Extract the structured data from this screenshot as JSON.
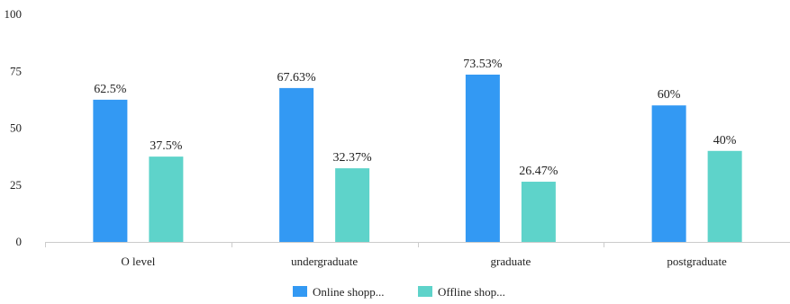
{
  "chart_data": {
    "type": "bar",
    "categories": [
      "O level",
      "undergraduate",
      "graduate",
      "postgraduate"
    ],
    "series": [
      {
        "name": "Online shopp...",
        "color": "#3399f3",
        "values": [
          62.5,
          67.63,
          73.53,
          60
        ],
        "labels": [
          "62.5%",
          "67.63%",
          "73.53%",
          "60%"
        ]
      },
      {
        "name": "Offline shop...",
        "color": "#5ed3ca",
        "values": [
          37.5,
          32.37,
          26.47,
          40
        ],
        "labels": [
          "37.5%",
          "32.37%",
          "26.47%",
          "40%"
        ]
      }
    ],
    "yticks": [
      0,
      25,
      50,
      75,
      100
    ],
    "ylim": [
      0,
      100
    ],
    "grid": false,
    "legend_position": "bottom-center"
  }
}
